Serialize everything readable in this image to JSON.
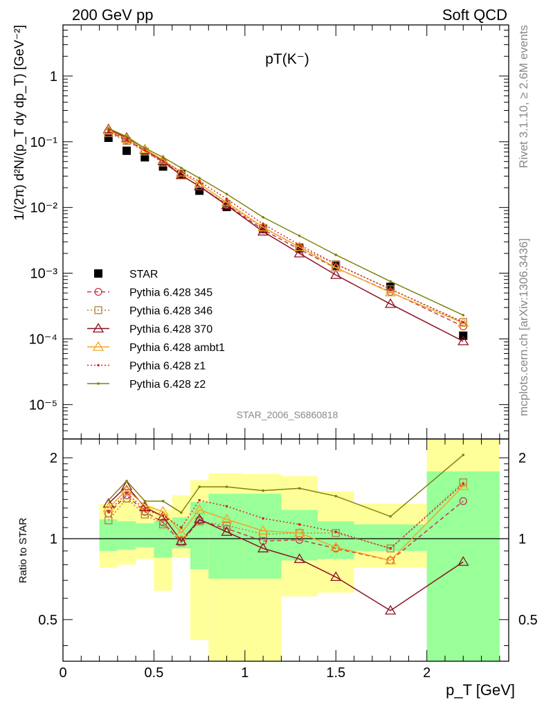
{
  "header": {
    "left": "200 GeV pp",
    "right": "Soft QCD"
  },
  "side": {
    "top": "Rivet 3.1.10, ≥ 2.6M events",
    "bottom": "mcplots.cern.ch [arXiv:1306.3436]"
  },
  "analysis_label": "STAR_2006_S6860818",
  "legend_title": "STAR",
  "chart_data": [
    {
      "type": "scatter",
      "title": "pT(K⁻)",
      "xlabel": "",
      "ylabel": "1/(2π) d²N/(p_T dy dp_T) [GeV⁻²]",
      "yscale": "log",
      "ylim": [
        3e-06,
        6
      ],
      "xlim": [
        0,
        2.45
      ],
      "ytick_labels": [
        "10⁻⁵",
        "10⁻⁴",
        "10⁻³",
        "10⁻²",
        "10⁻¹",
        "1"
      ],
      "legend_position": "lower-left",
      "x": [
        0.25,
        0.35,
        0.45,
        0.55,
        0.65,
        0.75,
        0.9,
        1.1,
        1.3,
        1.5,
        1.8,
        2.2
      ],
      "series": [
        {
          "name": "STAR",
          "color": "#000000",
          "marker": "square",
          "values": [
            0.115,
            0.073,
            0.058,
            0.042,
            0.032,
            0.018,
            0.0102,
            0.0047,
            0.0024,
            0.0013,
            0.00062,
            0.000112
          ]
        },
        {
          "name": "Pythia 6.428 345",
          "color": "#c0394b",
          "line": "dashed",
          "marker": "circle",
          "values": [
            0.143,
            0.106,
            0.073,
            0.049,
            0.031,
            0.021,
            0.0111,
            0.0046,
            0.0023,
            0.0012,
            0.00052,
            0.000155
          ]
        },
        {
          "name": "Pythia 6.428 346",
          "color": "#b08040",
          "line": "dotted",
          "marker": "square-open",
          "values": [
            0.135,
            0.103,
            0.071,
            0.048,
            0.031,
            0.021,
            0.0114,
            0.0049,
            0.0025,
            0.00137,
            0.00057,
            0.000181
          ]
        },
        {
          "name": "Pythia 6.428 370",
          "color": "#8b1020",
          "line": "solid",
          "marker": "triangle-open",
          "values": [
            0.155,
            0.115,
            0.076,
            0.051,
            0.031,
            0.021,
            0.0108,
            0.0043,
            0.002,
            0.00094,
            0.00034,
            9.2e-05
          ]
        },
        {
          "name": "Pythia 6.428 ambt1",
          "color": "#f5a623",
          "line": "solid",
          "marker": "triangle-open",
          "values": [
            0.15,
            0.111,
            0.077,
            0.053,
            0.034,
            0.023,
            0.012,
            0.005,
            0.0025,
            0.00121,
            0.00051,
            0.000175
          ]
        },
        {
          "name": "Pythia 6.428 z1",
          "color": "#d62020",
          "line": "dotted",
          "marker": "dot",
          "values": [
            0.145,
            0.108,
            0.074,
            0.051,
            0.035,
            0.025,
            0.0135,
            0.0056,
            0.0027,
            0.00138,
            0.00057,
            0.000179
          ]
        },
        {
          "name": "Pythia 6.428 z2",
          "color": "#808010",
          "line": "solid",
          "marker": "dot",
          "values": [
            0.16,
            0.12,
            0.08,
            0.058,
            0.04,
            0.028,
            0.016,
            0.0071,
            0.0037,
            0.0019,
            0.00075,
            0.00023
          ]
        }
      ]
    },
    {
      "type": "scatter",
      "title": "",
      "xlabel": "p_T [GeV]",
      "ylabel": "Ratio to STAR",
      "yscale": "log",
      "ylim": [
        0.35,
        2.35
      ],
      "xlim": [
        0,
        2.45
      ],
      "ytick_labels": [
        "0.5",
        "1",
        "2"
      ],
      "xtick_labels": [
        "0",
        "0.5",
        "1",
        "1.5",
        "2"
      ],
      "bands": {
        "edges": [
          0.2,
          0.3,
          0.4,
          0.5,
          0.6,
          0.7,
          0.8,
          1.0,
          1.2,
          1.4,
          1.6,
          2.0,
          2.4
        ],
        "stat_sys_lo": [
          0.78,
          0.8,
          0.84,
          0.64,
          0.85,
          0.42,
          0.33,
          0.33,
          0.61,
          0.63,
          0.78,
          0.33
        ],
        "stat_sys_hi": [
          1.35,
          1.4,
          1.33,
          1.28,
          1.45,
          1.65,
          1.75,
          1.74,
          1.71,
          1.5,
          1.35,
          2.35
        ],
        "stat_lo": [
          0.9,
          0.91,
          0.93,
          0.85,
          0.92,
          0.77,
          0.71,
          0.71,
          0.83,
          0.84,
          0.9,
          0.33
        ],
        "stat_hi": [
          1.18,
          1.16,
          1.14,
          1.16,
          1.2,
          1.37,
          1.47,
          1.47,
          1.28,
          1.16,
          1.13,
          1.78
        ]
      },
      "x": [
        0.25,
        0.35,
        0.45,
        0.55,
        0.65,
        0.75,
        0.9,
        1.1,
        1.3,
        1.5,
        1.8,
        2.2
      ],
      "series": [
        {
          "name": "Pythia 6.428 345",
          "values": [
            1.24,
            1.45,
            1.26,
            1.15,
            0.97,
            1.17,
            1.09,
            0.98,
            0.99,
            0.92,
            0.83,
            1.38
          ]
        },
        {
          "name": "Pythia 6.428 346",
          "values": [
            1.17,
            1.41,
            1.23,
            1.13,
            0.97,
            1.16,
            1.12,
            1.04,
            1.05,
            1.05,
            0.92,
            1.62
          ]
        },
        {
          "name": "Pythia 6.428 370",
          "values": [
            1.35,
            1.57,
            1.31,
            1.21,
            0.98,
            1.18,
            1.06,
            0.92,
            0.84,
            0.72,
            0.54,
            0.82
          ]
        },
        {
          "name": "Pythia 6.428 ambt1",
          "values": [
            1.3,
            1.52,
            1.33,
            1.26,
            1.05,
            1.28,
            1.18,
            1.07,
            1.05,
            0.93,
            0.83,
            1.57
          ]
        },
        {
          "name": "Pythia 6.428 z1",
          "values": [
            1.26,
            1.48,
            1.28,
            1.22,
            1.1,
            1.39,
            1.32,
            1.19,
            1.13,
            1.06,
            0.92,
            1.6
          ]
        },
        {
          "name": "Pythia 6.428 z2",
          "values": [
            1.39,
            1.64,
            1.38,
            1.38,
            1.25,
            1.56,
            1.56,
            1.51,
            1.54,
            1.44,
            1.21,
            2.05
          ]
        }
      ]
    }
  ]
}
